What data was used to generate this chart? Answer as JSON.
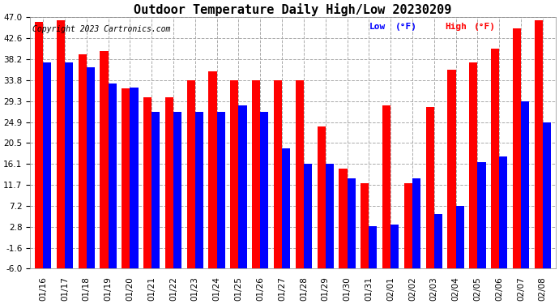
{
  "title": "Outdoor Temperature Daily High/Low 20230209",
  "copyright": "Copyright 2023 Cartronics.com",
  "legend_low": "Low",
  "legend_high": "High",
  "legend_unit": "(°F)",
  "dates": [
    "01/16",
    "01/17",
    "01/18",
    "01/19",
    "01/20",
    "01/21",
    "01/22",
    "01/23",
    "01/24",
    "01/25",
    "01/26",
    "01/27",
    "01/28",
    "01/29",
    "01/30",
    "01/31",
    "02/01",
    "02/02",
    "02/03",
    "02/04",
    "02/05",
    "02/06",
    "02/07",
    "02/08"
  ],
  "highs": [
    46.0,
    46.4,
    39.2,
    39.9,
    32.0,
    30.2,
    30.2,
    33.8,
    35.6,
    33.8,
    33.8,
    33.8,
    33.8,
    24.0,
    15.0,
    12.0,
    28.4,
    12.0,
    28.0,
    36.0,
    37.4,
    40.4,
    44.6,
    46.4
  ],
  "lows": [
    37.4,
    37.4,
    36.5,
    33.0,
    32.2,
    27.0,
    27.0,
    27.0,
    27.0,
    28.4,
    27.0,
    19.4,
    16.1,
    16.1,
    13.0,
    3.0,
    3.2,
    13.0,
    5.5,
    7.2,
    16.5,
    17.6,
    29.3,
    24.8
  ],
  "high_color": "#ff0000",
  "low_color": "#0000ff",
  "bg_color": "#ffffff",
  "grid_color": "#aaaaaa",
  "ylim_min": -6.0,
  "ylim_max": 47.0,
  "yticks": [
    47.0,
    42.6,
    38.2,
    33.8,
    29.3,
    24.9,
    20.5,
    16.1,
    11.7,
    7.2,
    2.8,
    -1.6,
    -6.0
  ],
  "title_fontsize": 11,
  "copyright_fontsize": 7,
  "legend_fontsize": 8,
  "tick_fontsize": 7.5,
  "bar_width": 0.38
}
